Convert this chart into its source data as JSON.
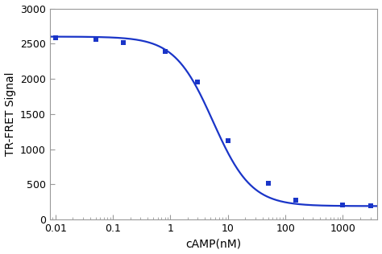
{
  "data_x": [
    0.01,
    0.05,
    0.15,
    0.8,
    3.0,
    10.0,
    50.0,
    150.0,
    1000.0,
    3000.0
  ],
  "data_y": [
    2580,
    2560,
    2510,
    2390,
    1950,
    1120,
    520,
    270,
    210,
    200
  ],
  "curve_color": "#1a35c8",
  "marker_color": "#1a35c8",
  "marker": "s",
  "marker_size": 5,
  "line_width": 1.6,
  "xlabel": "cAMP(nM)",
  "ylabel": "TR-FRET Signal",
  "xlim": [
    0.008,
    4000
  ],
  "ylim": [
    0,
    3000
  ],
  "yticks": [
    0,
    500,
    1000,
    1500,
    2000,
    2500,
    3000
  ],
  "xticks": [
    0.01,
    0.1,
    1,
    10,
    100,
    1000
  ],
  "xtick_labels": [
    "0.01",
    "0.1",
    "1",
    "10",
    "100",
    "1000"
  ],
  "background_color": "#ffffff",
  "plot_background": "#ffffff",
  "spine_color": "#999999",
  "top_max": 2600,
  "bottom_min": 190,
  "ec50": 5.5,
  "hill": 1.3
}
